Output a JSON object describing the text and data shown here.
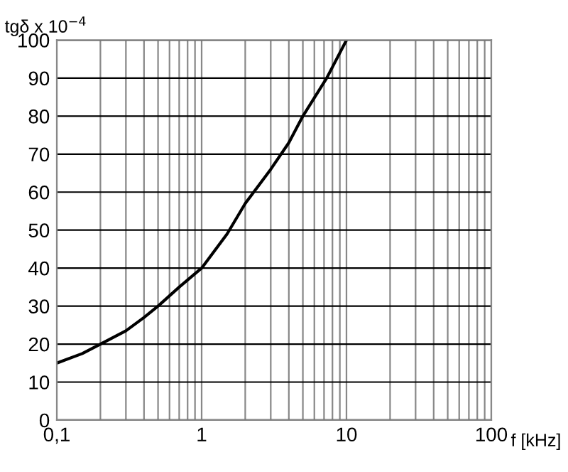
{
  "chart_data": {
    "type": "line",
    "ylabel": "tgδ x 10$^{−4}$",
    "xlabel": "f [kHz]",
    "log": "x",
    "x": [
      0.1,
      0.15,
      0.2,
      0.3,
      0.4,
      0.5,
      0.7,
      1,
      1.5,
      2,
      3,
      4,
      5,
      7.3,
      10
    ],
    "values": [
      15,
      17.5,
      20,
      23.5,
      27,
      30,
      35,
      40,
      49,
      57,
      66,
      73,
      80,
      90,
      100
    ],
    "color": "#000000",
    "xlim": [
      0.1,
      100
    ],
    "ylim": [
      0,
      100
    ],
    "xticks": [
      {
        "value": 0.1,
        "label": "0,1"
      },
      1,
      10,
      100
    ],
    "yticks": [
      0,
      10,
      20,
      30,
      40,
      50,
      60,
      70,
      80,
      90,
      100
    ],
    "grid": true,
    "marker": "none",
    "line_style": "solid"
  }
}
